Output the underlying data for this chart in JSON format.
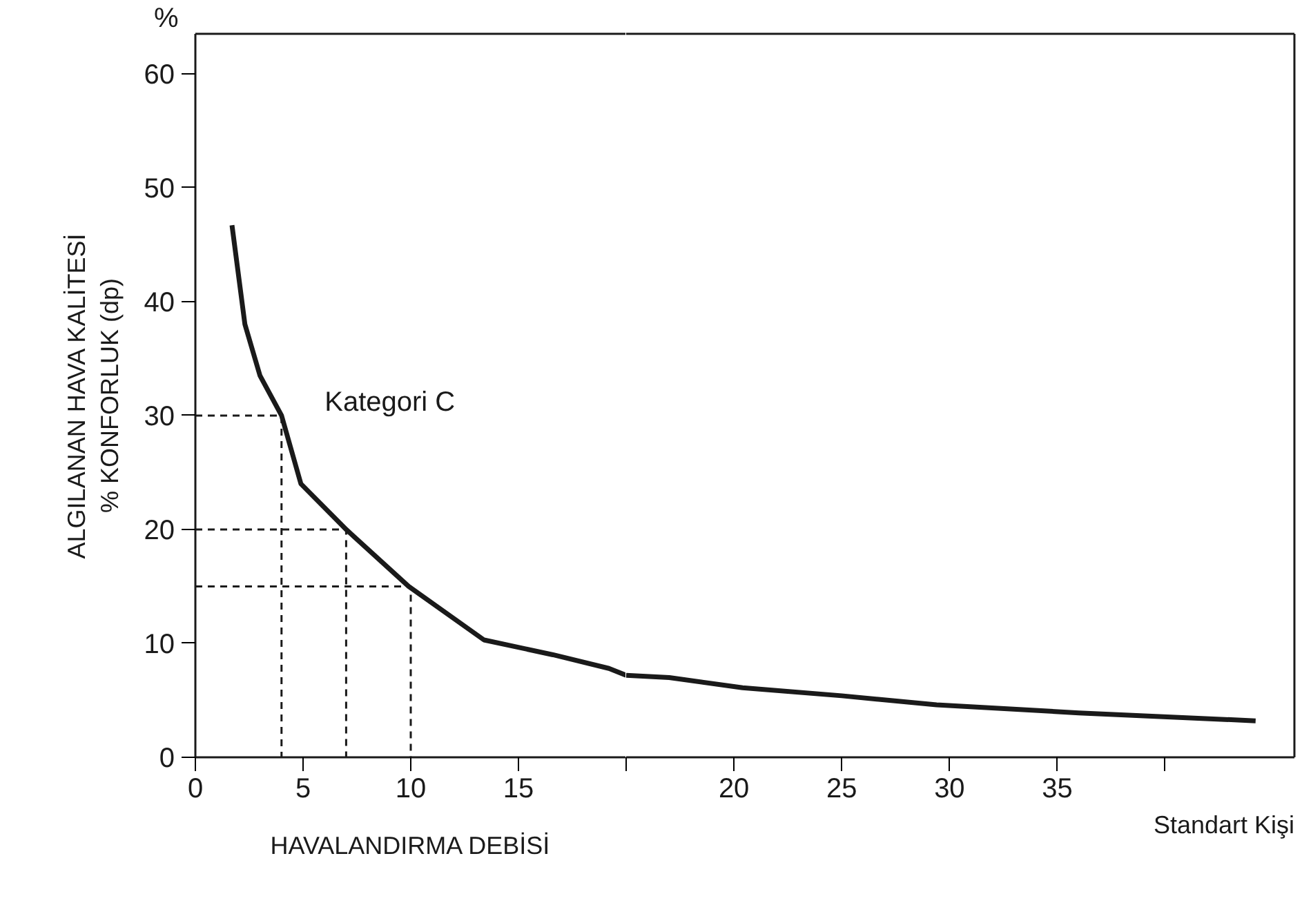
{
  "chart_data": [
    {
      "type": "line",
      "xlabel": "HAVALANDIRMA DEBİSİ",
      "ylabel": "ALGILANAN HAVA KALİTESİ\n% KONFORLUK (dp)",
      "xlim": [
        0,
        20
      ],
      "ylim": [
        0,
        63.5
      ],
      "xticks": [
        0,
        5,
        10,
        15,
        {
          "value": 20,
          "label": null
        }
      ],
      "yticks": [
        0,
        10,
        20,
        30,
        40,
        50,
        60
      ],
      "grid": false,
      "marker": "none",
      "series": [
        {
          "color": "#1a1a1a",
          "line_style": "solid",
          "x": [
            1.7,
            2.3,
            3.0,
            4,
            4.9,
            7,
            9.9,
            13.4,
            16.6,
            19.2,
            20
          ],
          "values": [
            46.7,
            38,
            33.5,
            30,
            24,
            20,
            15,
            10.3,
            9,
            7.8,
            7.2
          ]
        },
        {
          "color": "#1a1a1a",
          "line_style": "dashed",
          "x": [
            0,
            4,
            4
          ],
          "values": [
            30,
            30,
            0
          ]
        },
        {
          "color": "#1a1a1a",
          "line_style": "dashed",
          "x": [
            0,
            7,
            7
          ],
          "values": [
            20,
            20,
            0
          ]
        },
        {
          "color": "#1a1a1a",
          "line_style": "dashed",
          "x": [
            0,
            10,
            10
          ],
          "values": [
            15,
            15,
            0
          ]
        }
      ],
      "annotations": [
        "Kategori C",
        "%"
      ]
    },
    {
      "type": "line",
      "xlim": [
        15,
        46
      ],
      "ylim": [
        0,
        63.5
      ],
      "xticks": [
        {
          "value": 15,
          "label": null
        },
        20,
        25,
        30,
        35,
        {
          "value": 40,
          "label": null
        }
      ],
      "yticks": [
        0,
        10,
        20,
        30,
        40,
        50,
        60
      ],
      "tick_labels": "x",
      "grid": false,
      "marker": "none",
      "series": [
        {
          "color": "#1a1a1a",
          "line_style": "solid",
          "x": [
            15,
            17,
            20.4,
            25,
            29.4,
            36,
            44.2
          ],
          "values": [
            7.2,
            7,
            6.1,
            5.4,
            4.6,
            3.9,
            3.2
          ]
        }
      ],
      "annotations": [
        "Standart Kişi"
      ]
    }
  ]
}
